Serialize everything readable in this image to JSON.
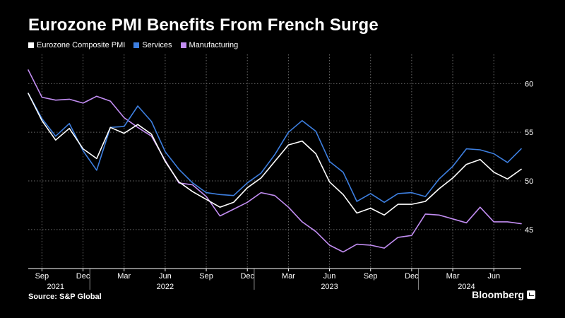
{
  "colors": {
    "background": "#000000",
    "composite": "#ffffff",
    "services": "#3d7fe0",
    "manufacturing": "#c28df2",
    "grid": "#6a6a6a"
  },
  "chart_data": {
    "type": "line",
    "title": "Eurozone PMI Benefits From French Surge",
    "source": "Source: S&P Global",
    "brand": "Bloomberg",
    "legend_position": "top-left",
    "ylim": [
      41,
      63
    ],
    "y_ticks": [
      45,
      50,
      55,
      60
    ],
    "y_tick_labels": [
      "45",
      "50",
      "55",
      "60"
    ],
    "x_month_ticks": [
      {
        "label": "Sep",
        "index": 1
      },
      {
        "label": "Dec",
        "index": 4
      },
      {
        "label": "Mar",
        "index": 7
      },
      {
        "label": "Jun",
        "index": 10
      },
      {
        "label": "Sep",
        "index": 13
      },
      {
        "label": "Dec",
        "index": 16
      },
      {
        "label": "Mar",
        "index": 19
      },
      {
        "label": "Jun",
        "index": 22
      },
      {
        "label": "Sep",
        "index": 25
      },
      {
        "label": "Dec",
        "index": 28
      },
      {
        "label": "Mar",
        "index": 31
      },
      {
        "label": "Jun",
        "index": 34
      }
    ],
    "x_year_ticks": [
      {
        "label": "2021",
        "index": 2
      },
      {
        "label": "2022",
        "index": 10
      },
      {
        "label": "2023",
        "index": 22
      },
      {
        "label": "2024",
        "index": 32
      }
    ],
    "year_separators": [
      4.5,
      16.5,
      28.5
    ],
    "x": [
      "Aug 2021",
      "Sep 2021",
      "Oct 2021",
      "Nov 2021",
      "Dec 2021",
      "Jan 2022",
      "Feb 2022",
      "Mar 2022",
      "Apr 2022",
      "May 2022",
      "Jun 2022",
      "Jul 2022",
      "Aug 2022",
      "Sep 2022",
      "Oct 2022",
      "Nov 2022",
      "Dec 2022",
      "Jan 2023",
      "Feb 2023",
      "Mar 2023",
      "Apr 2023",
      "May 2023",
      "Jun 2023",
      "Jul 2023",
      "Aug 2023",
      "Sep 2023",
      "Oct 2023",
      "Nov 2023",
      "Dec 2023",
      "Jan 2024",
      "Feb 2024",
      "Mar 2024",
      "Apr 2024",
      "May 2024",
      "Jun 2024",
      "Jul 2024",
      "Aug 2024"
    ],
    "series": [
      {
        "name": "Eurozone Composite PMI",
        "color": "#ffffff",
        "values": [
          59.0,
          56.2,
          54.2,
          55.4,
          53.3,
          52.3,
          55.5,
          54.9,
          55.8,
          54.8,
          52.0,
          49.9,
          48.9,
          48.1,
          47.3,
          47.8,
          49.3,
          50.3,
          52.0,
          53.7,
          54.1,
          52.8,
          49.9,
          48.6,
          46.7,
          47.2,
          46.5,
          47.6,
          47.6,
          47.9,
          49.2,
          50.3,
          51.7,
          52.2,
          50.9,
          50.2,
          51.2
        ]
      },
      {
        "name": "Services",
        "color": "#3d7fe0",
        "values": [
          59.0,
          56.4,
          54.6,
          55.9,
          53.1,
          51.1,
          55.5,
          55.6,
          57.7,
          56.1,
          53.0,
          51.2,
          49.8,
          48.8,
          48.6,
          48.5,
          49.8,
          50.8,
          52.7,
          55.0,
          56.2,
          55.1,
          52.0,
          50.9,
          47.9,
          48.7,
          47.8,
          48.7,
          48.8,
          48.4,
          50.2,
          51.5,
          53.3,
          53.2,
          52.8,
          51.9,
          53.3
        ]
      },
      {
        "name": "Manufacturing",
        "color": "#c28df2",
        "values": [
          61.4,
          58.6,
          58.3,
          58.4,
          58.0,
          58.7,
          58.2,
          56.5,
          55.5,
          54.6,
          52.1,
          49.8,
          49.6,
          48.4,
          46.4,
          47.1,
          47.8,
          48.8,
          48.5,
          47.3,
          45.8,
          44.8,
          43.4,
          42.7,
          43.5,
          43.4,
          43.1,
          44.2,
          44.4,
          46.6,
          46.5,
          46.1,
          45.7,
          47.3,
          45.8,
          45.8,
          45.6
        ]
      }
    ]
  }
}
